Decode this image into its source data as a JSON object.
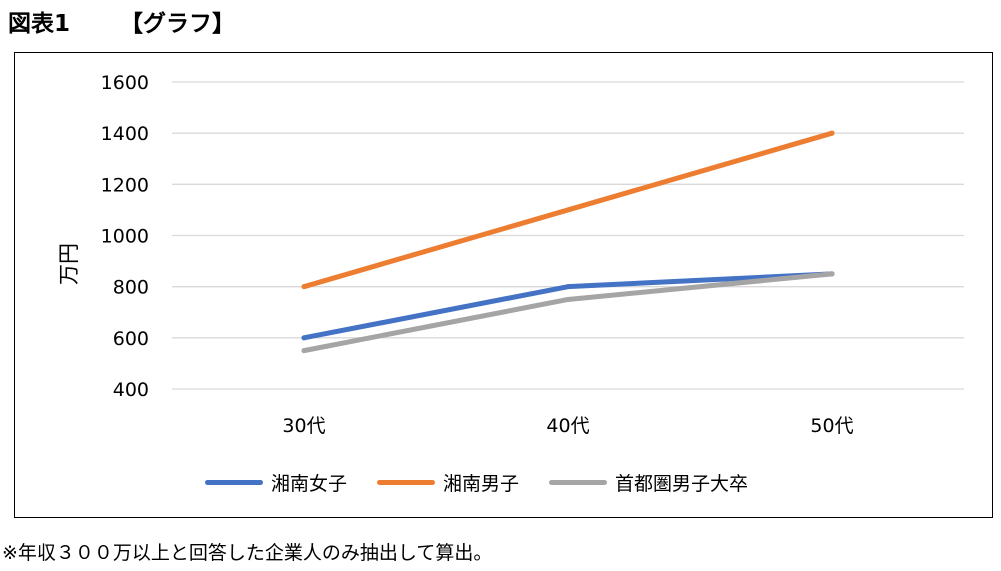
{
  "figure": {
    "label": "図表1",
    "title": "【グラフ】"
  },
  "note": "※年収３００万以上と回答した企業人のみ抽出して算出。",
  "chart_data": {
    "type": "line",
    "categories": [
      "30代",
      "40代",
      "50代"
    ],
    "ylabel": "万円",
    "ylim": [
      400,
      1600
    ],
    "yticks": [
      400,
      600,
      800,
      1000,
      1200,
      1400,
      1600
    ],
    "grid": true,
    "legend_position": "bottom",
    "series": [
      {
        "name": "湘南女子",
        "color": "#4472C4",
        "values": [
          600,
          800,
          850
        ]
      },
      {
        "name": "湘南男子",
        "color": "#ED7D31",
        "values": [
          800,
          1100,
          1400
        ]
      },
      {
        "name": "首都圏男子大卒",
        "color": "#A5A5A5",
        "values": [
          550,
          750,
          850
        ]
      }
    ]
  }
}
